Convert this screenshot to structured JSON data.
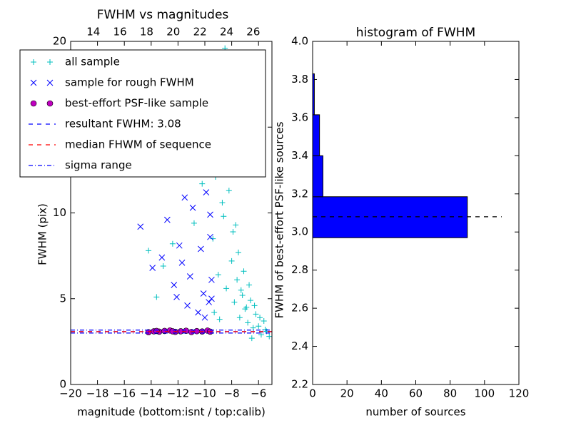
{
  "chart_data": [
    {
      "type": "scatter",
      "title": "FWHM vs magnitudes",
      "xlabel": "magnitude (bottom:isnt / top:calib)",
      "ylabel": "FWHM (pix)",
      "xlim": [
        -20,
        -5
      ],
      "xticks": [
        {
          "value": -20,
          "label": "−20"
        },
        {
          "value": -18,
          "label": "−18"
        },
        {
          "value": -16,
          "label": "−16"
        },
        {
          "value": -14,
          "label": "−14"
        },
        {
          "value": -12,
          "label": "−12"
        },
        {
          "value": -10,
          "label": "−10"
        },
        {
          "value": -8,
          "label": "−8"
        },
        {
          "value": -6,
          "label": "−6"
        }
      ],
      "x2lim": [
        12.3,
        27.4
      ],
      "x2ticks": [
        14,
        16,
        18,
        20,
        22,
        24,
        26
      ],
      "ylim": [
        0,
        20
      ],
      "yticks": [
        0,
        5,
        10,
        15,
        20
      ],
      "legend": "upper left",
      "series": [
        {
          "name": "all sample",
          "color": "#00bfbf",
          "marker": "plus",
          "x": [
            -9.4,
            -9.2,
            -9,
            -8.8,
            -8.6,
            -8.4,
            -8.2,
            -8,
            -7.8,
            -7.6,
            -7.4,
            -7.2,
            -7,
            -6.8,
            -6.6,
            -6.4,
            -6.2,
            -6,
            -5.8,
            -5.6,
            -5.4,
            -5.2,
            -9.1,
            -8.7,
            -8.3,
            -7.9,
            -7.5,
            -7.1,
            -6.7,
            -6.3,
            -5.9,
            -5.5,
            -8.5,
            -8.1,
            -7.7,
            -9.3,
            -8.9,
            -6.5,
            -14.2,
            -13.6,
            -13.1,
            -12.4,
            -11.6,
            -10.8,
            -10.2,
            -7.3,
            -6.9,
            -8.0
          ],
          "y": [
            8.5,
            12.1,
            6.4,
            14.2,
            9.8,
            5.6,
            11.3,
            7.2,
            4.8,
            6.1,
            3.9,
            5.2,
            4.4,
            3.6,
            4.9,
            3.3,
            4.1,
            3.4,
            2.9,
            3.7,
            3.1,
            2.8,
            16.5,
            10.6,
            13.4,
            8.9,
            7.7,
            6.6,
            5.8,
            4.6,
            3.9,
            3.2,
            19.6,
            15.8,
            9.3,
            4.2,
            3.8,
            2.7,
            7.8,
            5.1,
            6.9,
            8.2,
            13.5,
            9.4,
            11.7,
            5.5,
            4.5,
            17.3
          ]
        },
        {
          "name": "sample for rough FWHM",
          "color": "#0000ff",
          "marker": "x",
          "x": [
            -14.8,
            -13.9,
            -13.2,
            -12.8,
            -12.3,
            -11.9,
            -11.5,
            -11.1,
            -10.7,
            -10.3,
            -9.9,
            -9.6,
            -9.5,
            -9.7,
            -10.1,
            -10.5,
            -11.3,
            -12.1,
            -9.8,
            -9.6,
            -10.9,
            -11.7,
            -9.5,
            -10.0
          ],
          "y": [
            9.2,
            6.8,
            7.4,
            9.6,
            5.8,
            8.1,
            10.9,
            6.3,
            12.4,
            7.9,
            11.2,
            8.6,
            6.1,
            4.8,
            5.3,
            4.2,
            4.6,
            5.1,
            13.6,
            9.9,
            10.3,
            7.1,
            5.0,
            3.9
          ]
        },
        {
          "name": "best-effort PSF-like sample",
          "color": "#bf00bf",
          "marker": "circle",
          "x": [
            -14.2,
            -13.8,
            -13.4,
            -13.0,
            -12.6,
            -12.2,
            -11.8,
            -11.4,
            -11.0,
            -10.6,
            -10.2,
            -9.8,
            -9.6,
            -13.6,
            -12.4
          ],
          "y": [
            3.05,
            3.1,
            3.08,
            3.12,
            3.15,
            3.07,
            3.1,
            3.13,
            3.06,
            3.11,
            3.09,
            3.14,
            3.08,
            3.12,
            3.1
          ]
        }
      ],
      "hlines": [
        {
          "name": "resultant FWHM: 3.08",
          "color": "#0000ff",
          "style": "dashed",
          "values": [
            3.08
          ]
        },
        {
          "name": "median FHWM of sequence",
          "color": "#ff0000",
          "style": "dashed",
          "values": [
            3.08
          ]
        },
        {
          "name": "sigma range",
          "color": "#0000ff",
          "style": "dashdot",
          "values": [
            3.0,
            3.17
          ]
        }
      ]
    },
    {
      "type": "histogram",
      "title": "histogram of FWHM",
      "xlabel": "number of sources",
      "ylabel": "FWHM of best-effort PSF-like sources",
      "orientation": "horizontal",
      "color": "#0000ff",
      "bins": [
        2.97,
        3.185,
        3.4,
        3.615,
        3.83
      ],
      "counts": [
        90,
        6,
        4,
        1
      ],
      "xlim": [
        0,
        120
      ],
      "xticks": [
        0,
        20,
        40,
        60,
        80,
        100,
        120
      ],
      "ylim": [
        2.2,
        4.0
      ],
      "yticks": [
        2.2,
        2.4,
        2.6,
        2.8,
        {
          "value": 3,
          "label": "3.0"
        },
        3.2,
        3.4,
        3.6,
        3.8,
        {
          "value": 4,
          "label": "4.0"
        }
      ],
      "median_line": {
        "y": 3.08,
        "x": [
          0,
          110
        ]
      }
    }
  ]
}
